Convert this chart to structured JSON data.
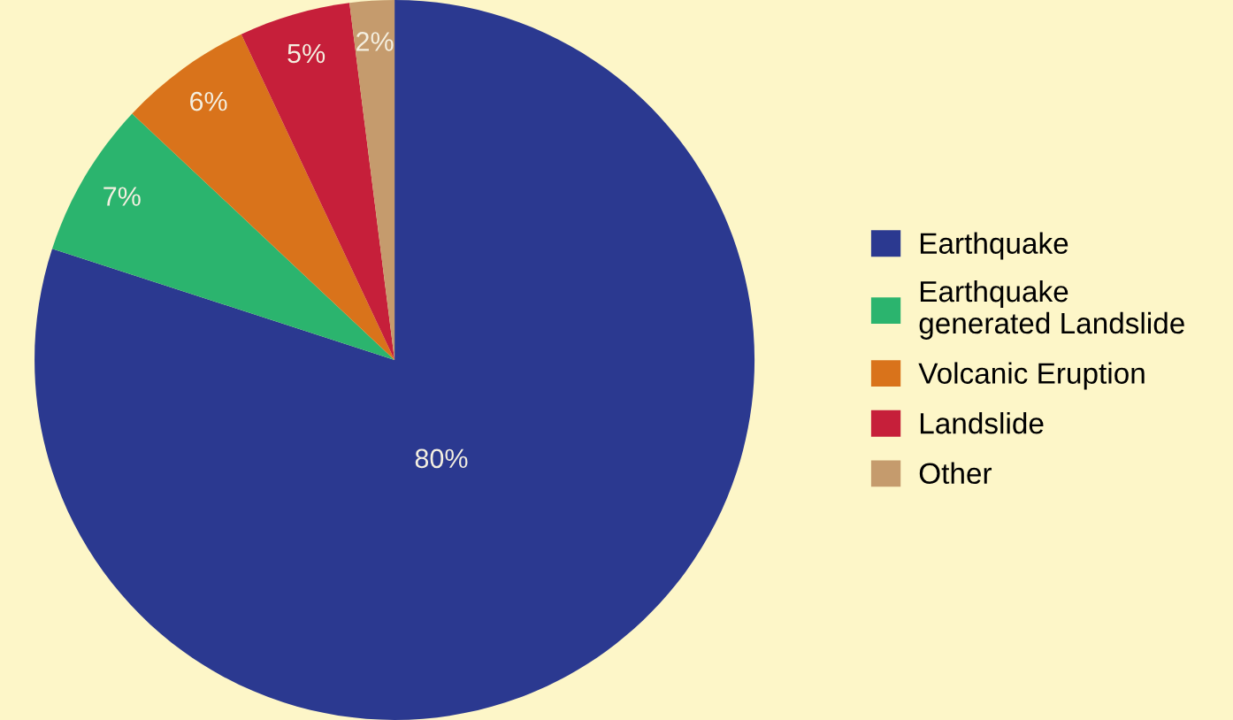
{
  "chart_data": {
    "type": "pie",
    "categories": [
      "Earthquake",
      "Earthquake\ngenerated Landslide",
      "Volcanic Eruption",
      "Landslide",
      "Other"
    ],
    "values": [
      80,
      7,
      6,
      5,
      2
    ],
    "colors": [
      "#2b3990",
      "#2bb46e",
      "#d9731b",
      "#c61f3a",
      "#c59b6d"
    ],
    "value_labels": [
      "80%",
      "7%",
      "6%",
      "5%",
      "2%"
    ],
    "legend": "right"
  }
}
